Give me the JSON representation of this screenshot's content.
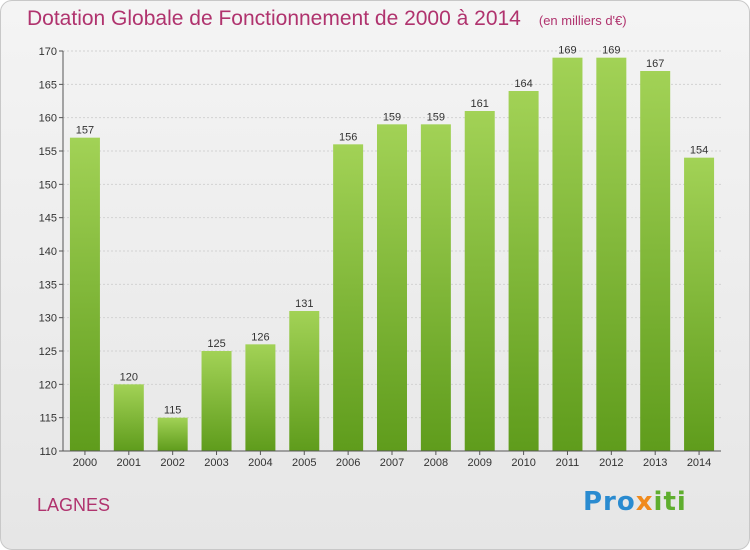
{
  "header": {
    "title": "Dotation Globale de Fonctionnement de 2000 à 2014",
    "unit": "(en milliers d'€)"
  },
  "footer": {
    "commune": "LAGNES",
    "logo": {
      "part1": "Pro",
      "part2": "x",
      "part3": "iti"
    }
  },
  "colors": {
    "bar_top": "#a2d256",
    "bar_bottom": "#5f9c1c",
    "title": "#b0336e",
    "grid": "#d2d2d2"
  },
  "chart_data": {
    "type": "bar",
    "categories": [
      "2000",
      "2001",
      "2002",
      "2003",
      "2004",
      "2005",
      "2006",
      "2007",
      "2008",
      "2009",
      "2010",
      "2011",
      "2012",
      "2013",
      "2014"
    ],
    "values": [
      157,
      120,
      115,
      125,
      126,
      131,
      156,
      159,
      159,
      161,
      164,
      169,
      169,
      167,
      154
    ],
    "title": "Dotation Globale de Fonctionnement de 2000 à 2014",
    "ylabel": "",
    "xlabel": "",
    "ylim": [
      110,
      170
    ],
    "yticks": [
      110,
      115,
      120,
      125,
      130,
      135,
      140,
      145,
      150,
      155,
      160,
      165,
      170
    ],
    "grid": true,
    "legend": "none"
  }
}
